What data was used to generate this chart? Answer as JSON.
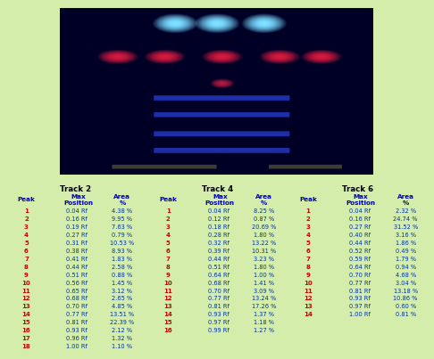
{
  "background_color": "#d4edaa",
  "track2_title": "Track 2",
  "track4_title": "Track 4",
  "track6_title": "Track 6",
  "header_bg": "#aadd00",
  "row_bg_odd": "#ccff33",
  "row_bg_even": "#bbee11",
  "header_text_color": "#0000bb",
  "data_text_color": "#003399",
  "peak_text_color": "#cc0000",
  "track2": [
    [
      1,
      "0.04 Rf",
      "4.38 %"
    ],
    [
      2,
      "0.16 Rf",
      "9.95 %"
    ],
    [
      3,
      "0.19 Rf",
      "7.63 %"
    ],
    [
      4,
      "0.27 Rf",
      "0.79 %"
    ],
    [
      5,
      "0.31 Rf",
      "10.53 %"
    ],
    [
      6,
      "0.38 Rf",
      "8.93 %"
    ],
    [
      7,
      "0.41 Rf",
      "1.83 %"
    ],
    [
      8,
      "0.44 Rf",
      "2.58 %"
    ],
    [
      9,
      "0.51 Rf",
      "0.88 %"
    ],
    [
      10,
      "0.56 Rf",
      "1.45 %"
    ],
    [
      11,
      "0.65 Rf",
      "3.12 %"
    ],
    [
      12,
      "0.68 Rf",
      "2.65 %"
    ],
    [
      13,
      "0.70 Rf",
      "4.85 %"
    ],
    [
      14,
      "0.77 Rf",
      "13.51 %"
    ],
    [
      15,
      "0.81 Rf",
      "22.39 %"
    ],
    [
      16,
      "0.93 Rf",
      "2.12 %"
    ],
    [
      17,
      "0.96 Rf",
      "1.32 %"
    ],
    [
      18,
      "1.00 Rf",
      "1.10 %"
    ]
  ],
  "track4": [
    [
      1,
      "0.04 Rf",
      "8.25 %"
    ],
    [
      2,
      "0.12 Rf",
      "0.87 %"
    ],
    [
      3,
      "0.18 Rf",
      "20.69 %"
    ],
    [
      4,
      "0.28 Rf",
      "1.80 %"
    ],
    [
      5,
      "0.32 Rf",
      "13.22 %"
    ],
    [
      6,
      "0.39 Rf",
      "10.31 %"
    ],
    [
      7,
      "0.44 Rf",
      "3.23 %"
    ],
    [
      8,
      "0.51 Rf",
      "1.80 %"
    ],
    [
      9,
      "0.64 Rf",
      "1.00 %"
    ],
    [
      10,
      "0.68 Rf",
      "1.41 %"
    ],
    [
      11,
      "0.70 Rf",
      "3.09 %"
    ],
    [
      12,
      "0.77 Rf",
      "13.24 %"
    ],
    [
      13,
      "0.81 Rf",
      "17.26 %"
    ],
    [
      14,
      "0.93 Rf",
      "1.37 %"
    ],
    [
      15,
      "0.97 Rf",
      "1.18 %"
    ],
    [
      16,
      "0.99 Rf",
      "1.27 %"
    ]
  ],
  "track6": [
    [
      1,
      "0.04 Rf",
      "2.32 %"
    ],
    [
      2,
      "0.16 Rf",
      "24.74 %"
    ],
    [
      3,
      "0.27 Rf",
      "31.52 %"
    ],
    [
      4,
      "0.40 Rf",
      "3.16 %"
    ],
    [
      5,
      "0.44 Rf",
      "1.86 %"
    ],
    [
      6,
      "0.52 Rf",
      "0.49 %"
    ],
    [
      7,
      "0.59 Rf",
      "1.79 %"
    ],
    [
      8,
      "0.64 Rf",
      "0.94 %"
    ],
    [
      9,
      "0.70 Rf",
      "4.68 %"
    ],
    [
      10,
      "0.77 Rf",
      "3.04 %"
    ],
    [
      11,
      "0.81 Rf",
      "13.18 %"
    ],
    [
      12,
      "0.93 Rf",
      "10.86 %"
    ],
    [
      13,
      "0.97 Rf",
      "0.60 %"
    ],
    [
      14,
      "1.00 Rf",
      "0.81 %"
    ]
  ]
}
